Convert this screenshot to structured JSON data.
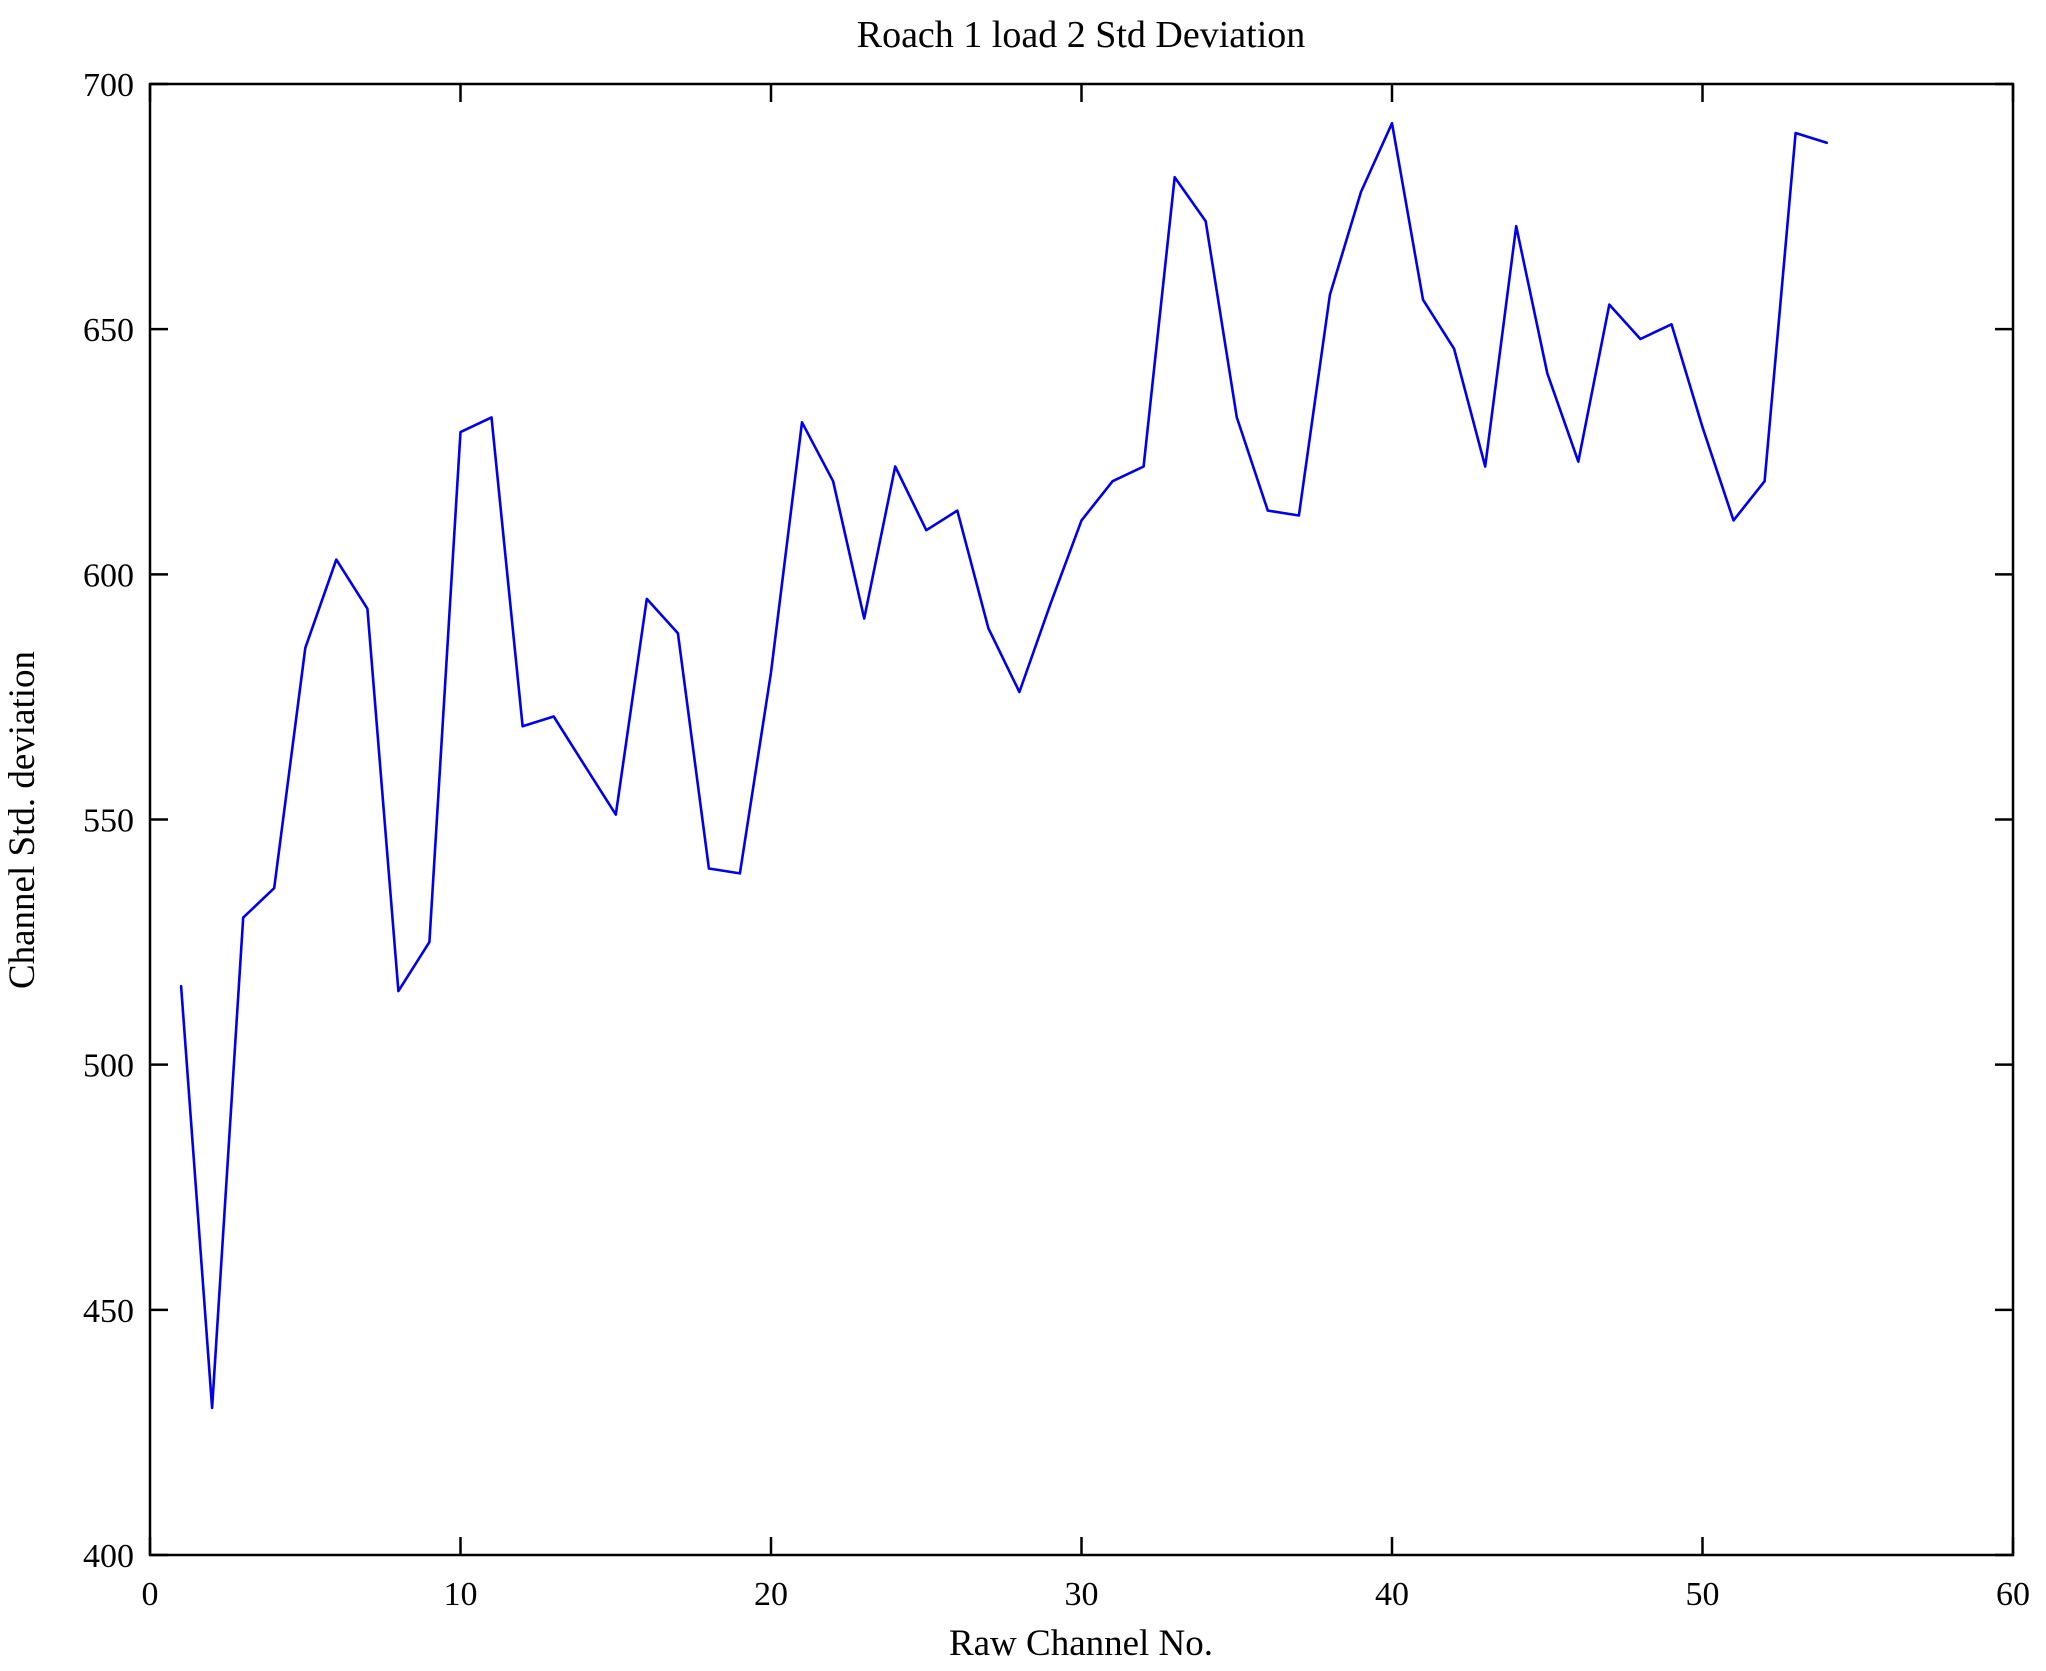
{
  "figure": {
    "background": "#ffffff",
    "box_color": "#000000"
  },
  "chart_data": {
    "type": "line",
    "title": "Roach 1 load 2 Std Deviation",
    "xlabel": "Raw Channel No.",
    "ylabel": "Channel Std. deviation",
    "xlim": [
      0,
      60
    ],
    "ylim": [
      400,
      700
    ],
    "xticks": [
      0,
      10,
      20,
      30,
      40,
      50,
      60
    ],
    "yticks": [
      400,
      450,
      500,
      550,
      600,
      650,
      700
    ],
    "grid": false,
    "legend": null,
    "line_color": "#0000EE",
    "series_name": "Channel Std. deviation",
    "x": [
      1,
      2,
      3,
      4,
      5,
      6,
      7,
      8,
      9,
      10,
      11,
      12,
      13,
      14,
      15,
      16,
      17,
      18,
      19,
      20,
      21,
      22,
      23,
      24,
      25,
      26,
      27,
      28,
      29,
      30,
      31,
      32,
      33,
      34,
      35,
      36,
      37,
      38,
      39,
      40,
      41,
      42,
      43,
      44,
      45,
      46,
      47,
      48,
      49,
      50,
      51,
      52,
      53,
      54
    ],
    "values": [
      516,
      430,
      530,
      536,
      585,
      603,
      593,
      515,
      525,
      629,
      632,
      569,
      571,
      561,
      551,
      595,
      588,
      540,
      539,
      580,
      631,
      619,
      591,
      622,
      609,
      613,
      589,
      576,
      594,
      611,
      619,
      622,
      681,
      672,
      632,
      613,
      612,
      657,
      678,
      692,
      656,
      646,
      622,
      671,
      641,
      623,
      655,
      648,
      651,
      630,
      611,
      619,
      690,
      688
    ]
  }
}
